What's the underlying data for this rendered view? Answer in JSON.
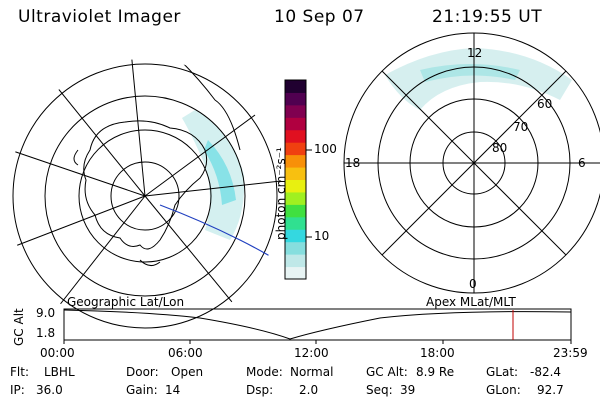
{
  "header": {
    "title": "Ultraviolet Imager",
    "date": "10 Sep 07",
    "time": "21:19:55 UT"
  },
  "colorbar": {
    "unit_label": "photon cm⁻²s⁻¹",
    "ticks": [
      "100",
      "10"
    ],
    "colors": [
      "#e8f4f4",
      "#bfe8e8",
      "#86dede",
      "#34d8e0",
      "#30e090",
      "#40e040",
      "#a0f020",
      "#e8f010",
      "#f8c010",
      "#f89008",
      "#f04010",
      "#e01020",
      "#b00040",
      "#800050",
      "#500050",
      "#200030"
    ]
  },
  "right_map": {
    "mlt_labels": [
      "12",
      "18",
      "6",
      "0"
    ],
    "lat_labels": [
      "60",
      "70",
      "80"
    ]
  },
  "timeline": {
    "axis_label": "GC Alt",
    "ymax": "9.0",
    "ymin": "1.8",
    "left_label": "Geographic Lat/Lon",
    "right_label": "Apex MLat/MLT",
    "time_ticks": [
      "00:00",
      "06:00",
      "12:00",
      "18:00",
      "23:59"
    ],
    "marker_color": "#c00000"
  },
  "info": {
    "flt_label": "Flt:",
    "flt_value": "LBHL",
    "ip_label": "IP:",
    "ip_value": "36.0",
    "door_label": "Door:",
    "door_value": "Open",
    "gain_label": "Gain:",
    "gain_value": "14",
    "mode_label": "Mode:",
    "mode_value": "Normal",
    "dsp_label": "Dsp:",
    "dsp_value": "2.0",
    "gcalt_label": "GC Alt:",
    "gcalt_value": "8.9 Re",
    "seq_label": "Seq:",
    "seq_value": "39",
    "glat_label": "GLat:",
    "glat_value": "-82.4",
    "glon_label": "GLon:",
    "glon_value": "92.7"
  }
}
